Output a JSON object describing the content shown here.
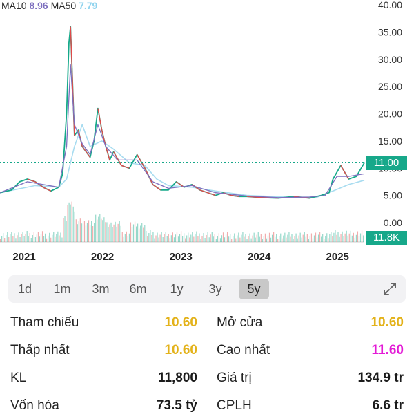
{
  "legend": {
    "ma10_label": "MA10",
    "ma10_value": "8.96",
    "ma50_label": "MA50",
    "ma50_value": "7.79"
  },
  "colors": {
    "up": "#16a98a",
    "down": "#e14a4a",
    "ma10": "#7d6fbf",
    "ma50": "#a8dcf0",
    "ref_line": "#17a88a",
    "tag_bg": "#17a88a",
    "yellow": "#e3b21a",
    "magenta": "#e31ad6"
  },
  "price_tag": "11.00",
  "volume_tag": "11.8K",
  "chart_data": {
    "type": "line",
    "y_ticks": [
      "40.00",
      "35.00",
      "30.00",
      "25.00",
      "20.00",
      "15.00",
      "10.00",
      "5.00",
      "0.00"
    ],
    "ylim": [
      0,
      40
    ],
    "x_ticks": [
      "2021",
      "2022",
      "2023",
      "2024",
      "2025"
    ],
    "reference_price": 11.0,
    "series": [
      {
        "x": [
          2020.85,
          2021.0,
          2021.1,
          2021.2,
          2021.3,
          2021.4,
          2021.5,
          2021.6,
          2021.65,
          2021.7,
          2021.73,
          2021.75,
          2021.77,
          2021.8,
          2021.85,
          2021.9,
          2022.0,
          2022.05,
          2022.1,
          2022.15,
          2022.2,
          2022.25,
          2022.3,
          2022.4,
          2022.5,
          2022.6,
          2022.7,
          2022.8,
          2022.9,
          2023.0,
          2023.1,
          2023.2,
          2023.3,
          2023.4,
          2023.5,
          2023.6,
          2023.7,
          2023.8,
          2023.9,
          2024.0,
          2024.2,
          2024.4,
          2024.6,
          2024.8,
          2024.95,
          2025.05,
          2025.1,
          2025.2,
          2025.3,
          2025.4,
          2025.5
        ],
        "values": [
          5.5,
          6.0,
          7.5,
          8.0,
          7.5,
          6.5,
          5.8,
          6.5,
          9.0,
          20.0,
          33.0,
          36.0,
          28.0,
          16.0,
          17.0,
          14.0,
          12.0,
          15.0,
          21.0,
          17.0,
          14.0,
          11.5,
          13.0,
          10.5,
          10.0,
          12.5,
          10.0,
          7.0,
          6.0,
          6.0,
          7.5,
          6.5,
          7.0,
          6.0,
          5.5,
          5.0,
          5.5,
          5.0,
          4.8,
          4.8,
          4.6,
          4.5,
          4.8,
          4.5,
          5.0,
          5.5,
          8.0,
          10.5,
          8.0,
          8.5,
          11.0
        ]
      },
      {
        "name": "MA10",
        "x": [
          2020.85,
          2021.2,
          2021.6,
          2021.7,
          2021.75,
          2021.8,
          2021.9,
          2022.0,
          2022.1,
          2022.2,
          2022.35,
          2022.6,
          2022.8,
          2023.0,
          2023.3,
          2023.6,
          2024.0,
          2024.4,
          2024.8,
          2025.0,
          2025.15,
          2025.3,
          2025.5
        ],
        "values": [
          5.5,
          7.5,
          6.5,
          14.0,
          29.0,
          18.0,
          14.5,
          12.5,
          18.0,
          14.0,
          11.5,
          11.5,
          7.5,
          6.3,
          6.8,
          5.5,
          4.9,
          4.6,
          4.7,
          5.0,
          8.5,
          8.5,
          8.96
        ]
      },
      {
        "name": "MA50",
        "x": [
          2020.85,
          2021.3,
          2021.6,
          2021.7,
          2021.8,
          2021.9,
          2022.0,
          2022.15,
          2022.3,
          2022.5,
          2022.7,
          2022.85,
          2023.0,
          2023.3,
          2023.6,
          2024.0,
          2024.5,
          2024.9,
          2025.1,
          2025.3,
          2025.5
        ],
        "values": [
          5.5,
          6.8,
          6.5,
          8.0,
          14.0,
          18.0,
          14.0,
          15.0,
          13.5,
          11.0,
          10.5,
          8.0,
          6.8,
          6.5,
          5.8,
          5.0,
          4.7,
          4.7,
          5.8,
          7.0,
          7.79
        ]
      }
    ]
  },
  "tabs": [
    {
      "label": "1d"
    },
    {
      "label": "1m"
    },
    {
      "label": "3m"
    },
    {
      "label": "6m"
    },
    {
      "label": "1y"
    },
    {
      "label": "3y"
    },
    {
      "label": "5y"
    }
  ],
  "stats": {
    "ref_label": "Tham chiếu",
    "ref_value": "10.60",
    "open_label": "Mở cửa",
    "open_value": "10.60",
    "low_label": "Thấp nhất",
    "low_value": "10.60",
    "high_label": "Cao nhất",
    "high_value": "11.60",
    "vol_label": "KL",
    "vol_value": "11,800",
    "val_label": "Giá trị",
    "val_value": "134.9 tr",
    "cap_label": "Vốn hóa",
    "cap_value": "73.5 tỷ",
    "shares_label": "CPLH",
    "shares_value": "6.6 tr"
  }
}
